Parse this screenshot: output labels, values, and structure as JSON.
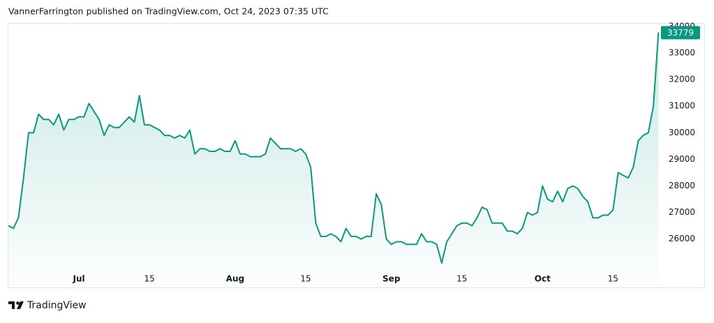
{
  "header": {
    "text": "VannerFarrington published on TradingView.com, Oct 24, 2023 07:35 UTC"
  },
  "chart_data": {
    "type": "area",
    "color": "#089981",
    "grid": false,
    "categories": [
      null,
      null,
      null,
      null,
      null,
      null,
      null,
      null,
      null,
      null,
      null,
      null,
      null,
      null,
      "Jul",
      null,
      null,
      null,
      null,
      null,
      null,
      null,
      null,
      null,
      null,
      null,
      null,
      null,
      "15",
      null,
      null,
      null,
      null,
      null,
      null,
      null,
      null,
      null,
      null,
      null,
      null,
      null,
      null,
      null,
      null,
      "Aug",
      null,
      null,
      null,
      null,
      null,
      null,
      null,
      null,
      null,
      null,
      null,
      null,
      null,
      "15",
      null,
      null,
      null,
      null,
      null,
      null,
      null,
      null,
      null,
      null,
      null,
      null,
      null,
      null,
      null,
      null,
      "Sep",
      null,
      null,
      null,
      null,
      null,
      null,
      null,
      null,
      null,
      null,
      null,
      null,
      null,
      "15",
      null,
      null,
      null,
      null,
      null,
      null,
      null,
      null,
      null,
      null,
      null,
      null,
      null,
      null,
      null,
      "Oct",
      null,
      null,
      null,
      null,
      null,
      null,
      null,
      null,
      null,
      null,
      null,
      null,
      null,
      "15",
      null,
      null,
      null,
      null,
      null,
      null,
      null,
      null,
      null
    ],
    "values": [
      26500,
      26400,
      26800,
      28300,
      30000,
      30000,
      30700,
      30500,
      30500,
      30300,
      30700,
      30100,
      30500,
      30500,
      30600,
      30600,
      31100,
      30800,
      30500,
      29900,
      30300,
      30200,
      30200,
      30400,
      30600,
      30400,
      31400,
      30300,
      30300,
      30200,
      30100,
      29900,
      29900,
      29800,
      29900,
      29800,
      30100,
      29200,
      29400,
      29400,
      29300,
      29300,
      29400,
      29300,
      29300,
      29700,
      29200,
      29200,
      29100,
      29100,
      29100,
      29200,
      29800,
      29600,
      29400,
      29400,
      29400,
      29300,
      29400,
      29200,
      28700,
      26600,
      26100,
      26100,
      26200,
      26100,
      25900,
      26400,
      26100,
      26100,
      26000,
      26100,
      26100,
      27700,
      27300,
      26000,
      25800,
      25900,
      25900,
      25800,
      25800,
      25800,
      26200,
      25900,
      25900,
      25800,
      25100,
      25900,
      26200,
      26500,
      26600,
      26600,
      26500,
      26800,
      27200,
      27100,
      26600,
      26600,
      26600,
      26300,
      26300,
      26200,
      26400,
      27000,
      26900,
      27000,
      28000,
      27500,
      27400,
      27800,
      27400,
      27900,
      28000,
      27900,
      27600,
      27400,
      26800,
      26800,
      26900,
      26900,
      27100,
      28500,
      28400,
      28300,
      28700,
      29700,
      29900,
      30000,
      31000,
      33779
    ],
    "ylim": [
      24180,
      34130
    ],
    "yticks": [
      26000,
      27000,
      28000,
      29000,
      30000,
      31000,
      32000,
      33000,
      34000
    ]
  },
  "footer": {
    "brand": "TradingView"
  }
}
